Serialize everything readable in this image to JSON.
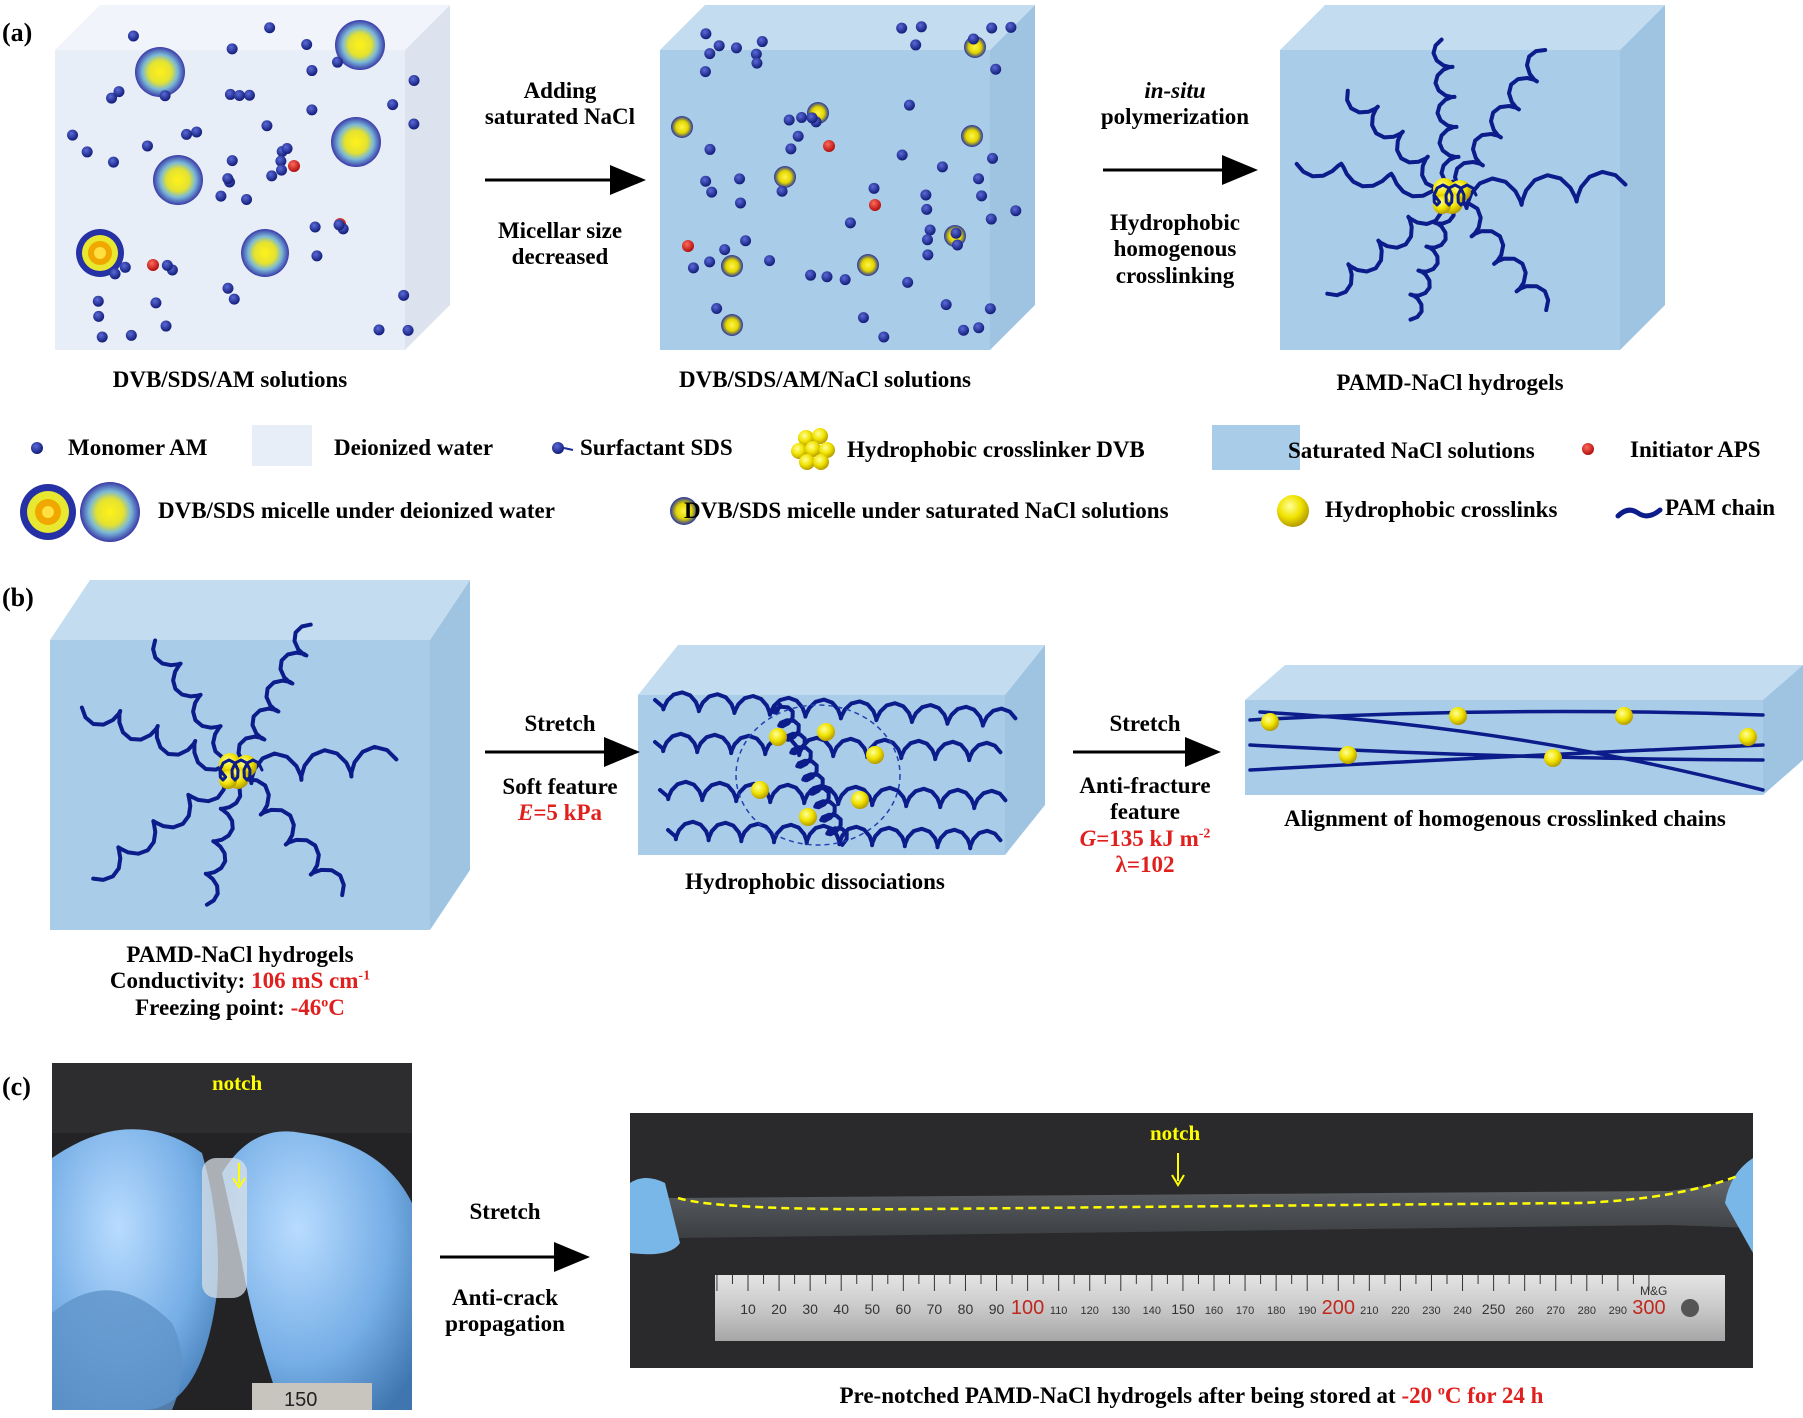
{
  "panel_a": {
    "label": "(a)",
    "arrow1": {
      "top": "Adding saturated NaCl",
      "top_line1": "Adding",
      "top_line2": "saturated NaCl",
      "bottom_line1": "Micellar size",
      "bottom_line2": "decreased"
    },
    "arrow2": {
      "top_line1": "in-situ",
      "top_line2": "polymerization",
      "bottom_line1": "Hydrophobic",
      "bottom_line2": "homogenous",
      "bottom_line3": "crosslinking"
    },
    "box1_caption": "DVB/SDS/AM solutions",
    "box2_caption": "DVB/SDS/AM/NaCl solutions",
    "box3_caption": "PAMD-NaCl hydrogels",
    "legend": {
      "monomer": "Monomer AM",
      "water": "Deionized water",
      "surfactant": "Surfactant SDS",
      "crosslinker": "Hydrophobic crosslinker DVB",
      "nacl": "Saturated NaCl solutions",
      "initiator": "Initiator APS",
      "micelle_water": "DVB/SDS micelle under deionized water",
      "micelle_nacl": "DVB/SDS micelle under saturated NaCl solutions",
      "crosslinks": "Hydrophobic crosslinks",
      "chain": "PAM chain"
    }
  },
  "panel_b": {
    "label": "(b)",
    "arrow1": {
      "top": "Stretch",
      "bottom": "Soft feature",
      "value_italic": "E",
      "value_rest": "=5 kPa"
    },
    "arrow2": {
      "top": "Stretch",
      "bottom_line1": "Anti-fracture",
      "bottom_line2": "feature",
      "g_italic": "G",
      "g_rest": "=135 kJ m",
      "g_sup": "-2",
      "lambda": "λ=102"
    },
    "box1_caption_line1": "PAMD-NaCl hydrogels",
    "conductivity_label": "Conductivity: ",
    "conductivity_value": "106 mS cm",
    "conductivity_sup": "-1",
    "freezing_label": "Freezing point: ",
    "freezing_value": "-46",
    "freezing_sup": "o",
    "freezing_unit": "C",
    "box2_caption": "Hydrophobic dissociations",
    "box3_caption": "Alignment of homogenous crosslinked chains"
  },
  "panel_c": {
    "label": "(c)",
    "notch_left": "notch",
    "notch_right": "notch",
    "arrow_top": "Stretch",
    "arrow_bottom_line1": "Anti-crack",
    "arrow_bottom_line2": "propagation",
    "caption_pre": "Pre-notched PAMD-NaCl hydrogels after being stored at ",
    "caption_red": "-20 ",
    "caption_sup": "o",
    "caption_red2": "C for 24 h",
    "ruler_ticks": [
      "10",
      "20",
      "30",
      "40",
      "50",
      "60",
      "70",
      "80",
      "90",
      "100",
      "110",
      "120",
      "130",
      "140",
      "150",
      "160",
      "170",
      "180",
      "190",
      "200",
      "210",
      "220",
      "230",
      "240",
      "250",
      "260",
      "270",
      "280",
      "290",
      "300"
    ],
    "ruler_brand": "M&G",
    "left_photo_ruler": [
      "150"
    ]
  },
  "colors": {
    "water_box": "#e9eef8",
    "nacl_box": "#a9cde9",
    "monomer": "#1d2d9a",
    "initiator": "#e0201e",
    "chain": "#0c1c8a",
    "crosslink": "#f2e21a",
    "highlight_red": "#e0201e",
    "notch_yellow": "#ffff00"
  }
}
